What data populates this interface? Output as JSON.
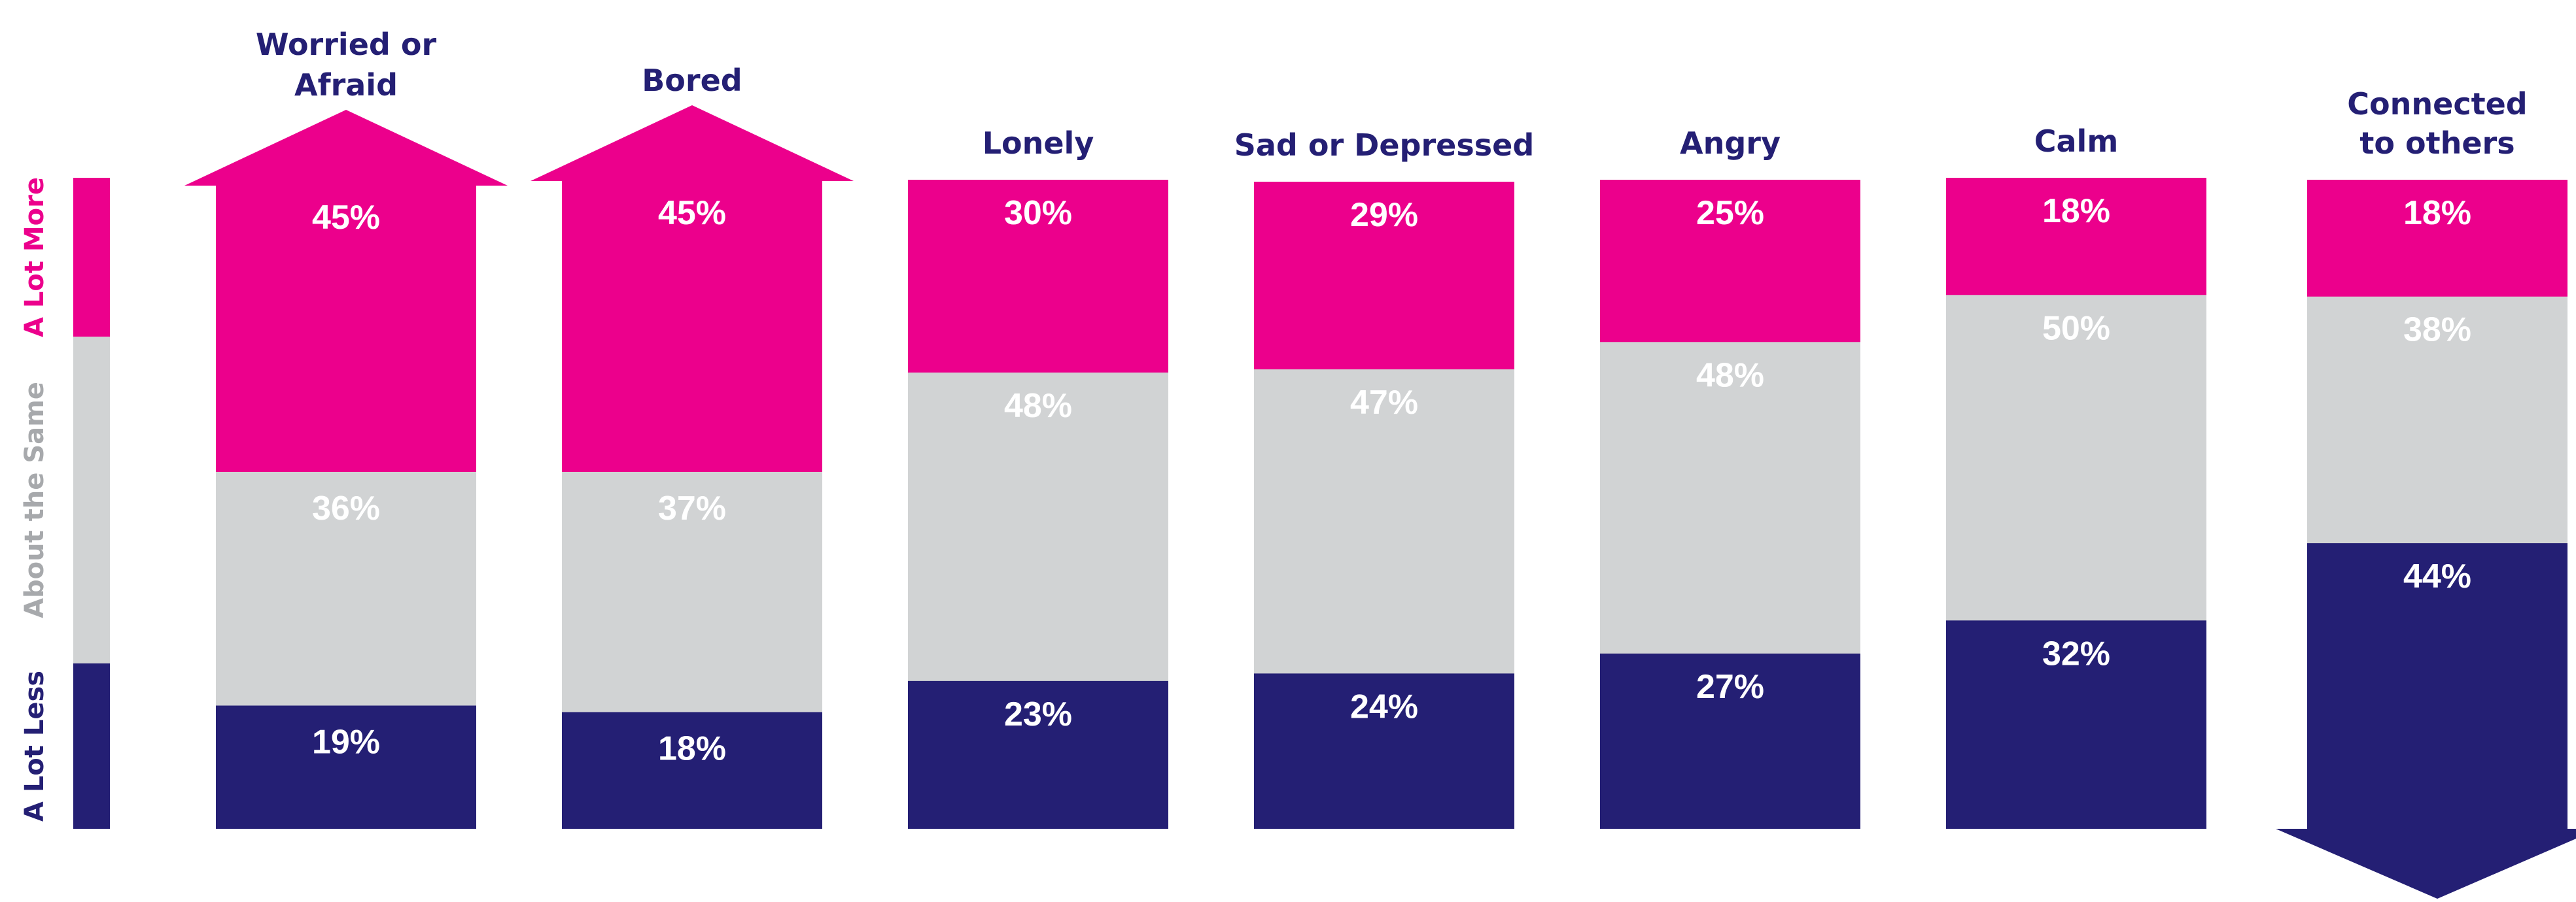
{
  "chart_data": {
    "type": "bar",
    "stacked": true,
    "normalized": true,
    "categories": [
      "Worried or Afraid",
      "Bored",
      "Lonely",
      "Sad or Depressed",
      "Angry",
      "Calm",
      "Connected to others"
    ],
    "category_title_lines": [
      [
        "Worried or",
        "Afraid"
      ],
      [
        "Bored"
      ],
      [
        "Lonely"
      ],
      [
        "Sad or Depressed"
      ],
      [
        "Angry"
      ],
      [
        "Calm"
      ],
      [
        "Connected",
        "to others"
      ]
    ],
    "series": [
      {
        "name": "A Lot More",
        "color": "#EC008C",
        "values": [
          45,
          45,
          30,
          29,
          25,
          18,
          18
        ]
      },
      {
        "name": "About the Same",
        "color": "#D1D3D4",
        "values": [
          36,
          37,
          48,
          47,
          48,
          50,
          38
        ]
      },
      {
        "name": "A Lot Less",
        "color": "#241F74",
        "values": [
          19,
          18,
          23,
          24,
          27,
          32,
          44
        ]
      }
    ],
    "value_suffix": "%",
    "arrow_up_categories": [
      "Worried or Afraid",
      "Bored"
    ],
    "arrow_down_categories": [
      "Connected to others"
    ],
    "legend_position": "left",
    "grid": false,
    "colors": {
      "title": "#241F74",
      "segment_label": "#FFFFFF",
      "legend_more": "#EC008C",
      "legend_same": "#A7A9AC",
      "legend_less": "#241F74"
    }
  }
}
